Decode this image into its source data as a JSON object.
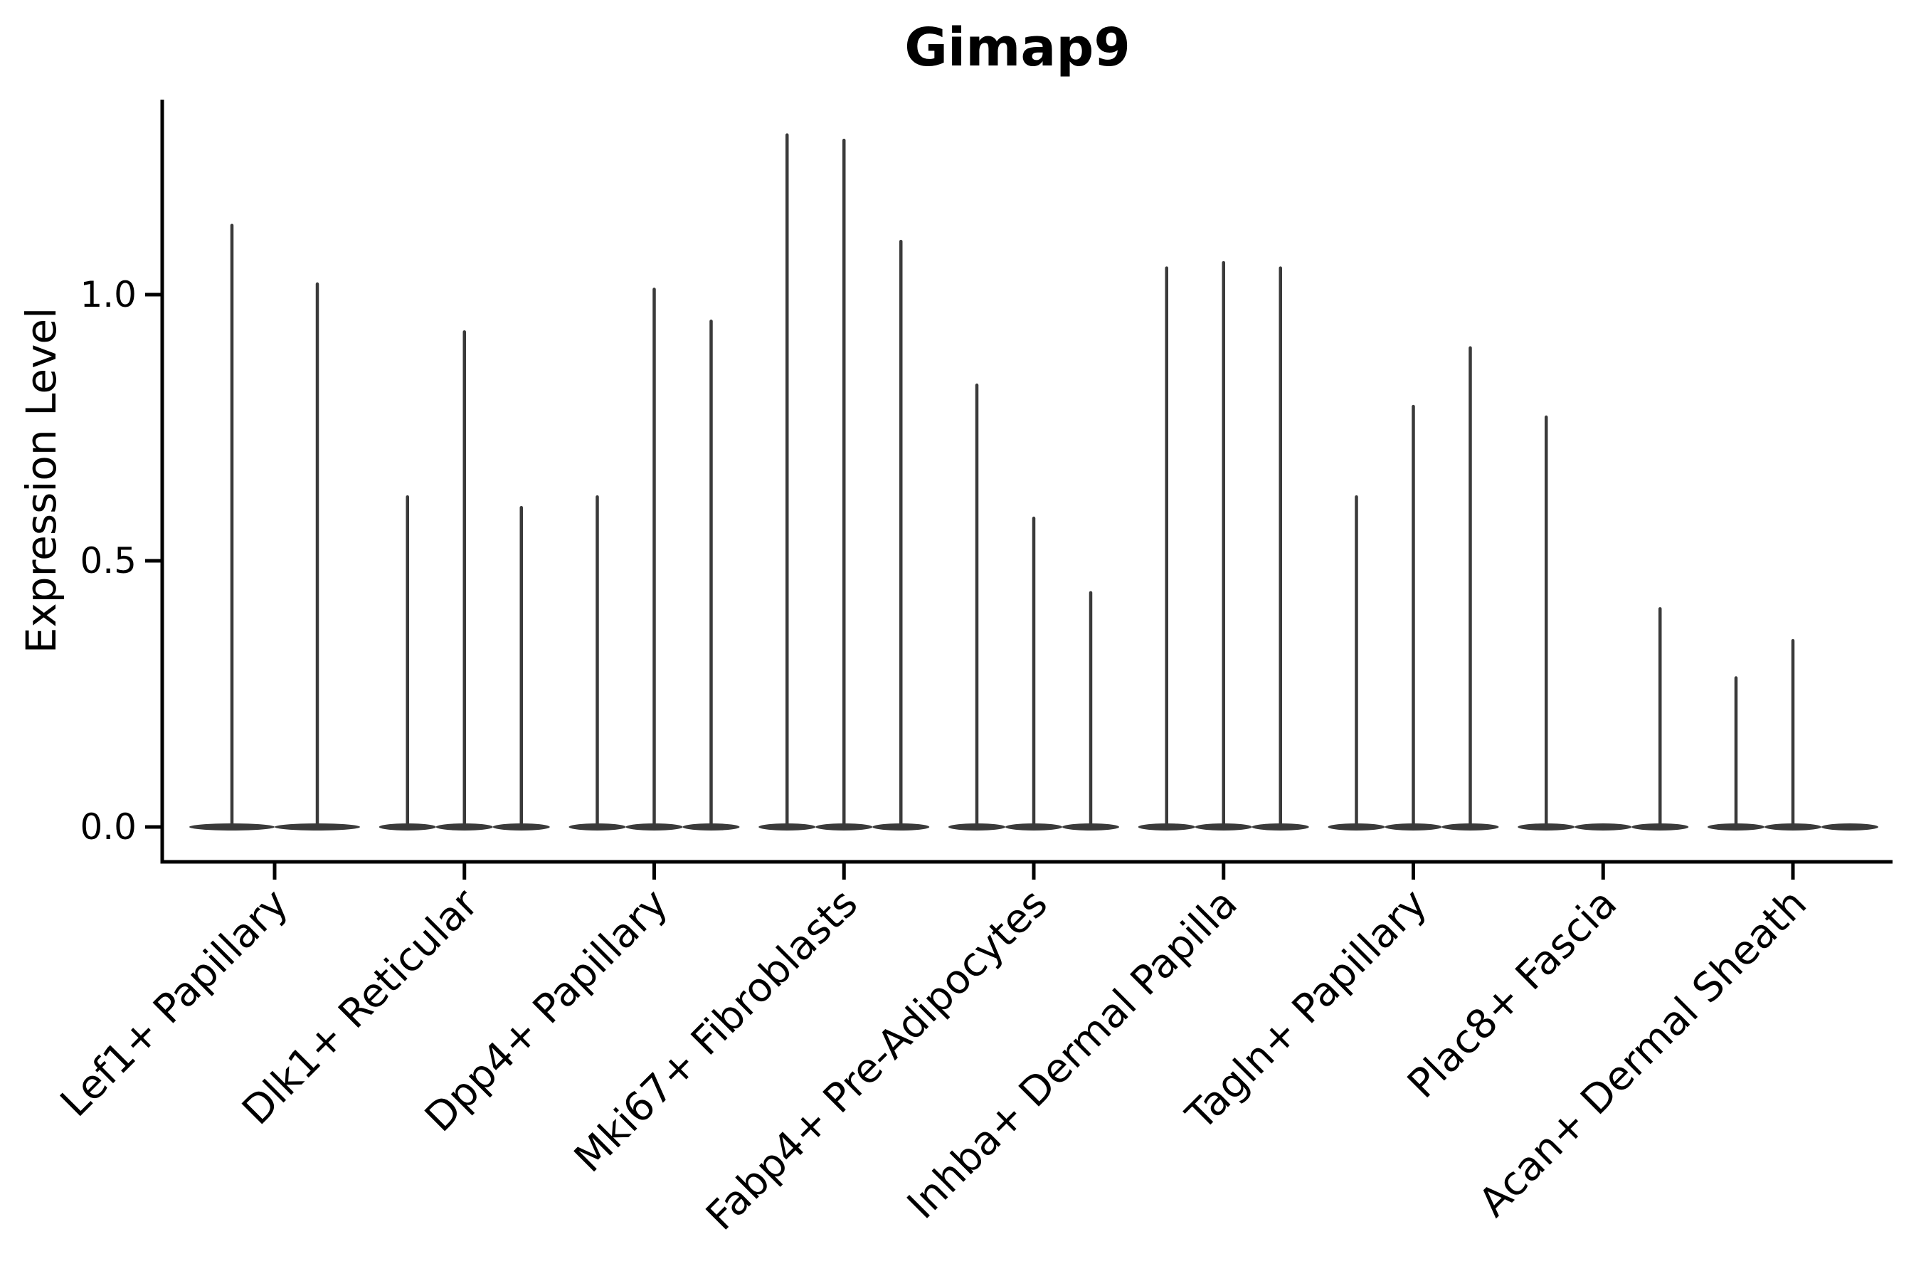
{
  "title": "Gimap9",
  "chart_data": {
    "type": "violin",
    "title": "Gimap9",
    "xlabel": "",
    "ylabel": "Expression Level",
    "yticks": [
      0.0,
      0.5,
      1.0
    ],
    "ylim": [
      -0.065,
      1.37
    ],
    "grid": false,
    "legend": "none",
    "violin_color": "#3a3a3a",
    "axis_color": "#000000",
    "background_color": "#ffffff",
    "note_values_are": "maximum expression reached by each thin violin spike; 0 means a flat violin (all data at zero, base only)",
    "groups": [
      {
        "category": "Lef1+ Papillary",
        "violins": [
          1.13,
          1.02
        ]
      },
      {
        "category": "Dlk1+ Reticular",
        "violins": [
          0.62,
          0.93,
          0.6
        ]
      },
      {
        "category": "Dpp4+ Papillary",
        "violins": [
          0.62,
          1.01,
          0.95
        ]
      },
      {
        "category": "Mki67+ Fibroblasts",
        "violins": [
          1.3,
          1.29,
          1.1
        ]
      },
      {
        "category": "Fabp4+ Pre-Adipocytes",
        "violins": [
          0.83,
          0.58,
          0.44
        ]
      },
      {
        "category": "Inhba+ Dermal Papilla",
        "violins": [
          1.05,
          1.06,
          1.05
        ]
      },
      {
        "category": "Tagln+ Papillary",
        "violins": [
          0.62,
          0.79,
          0.9
        ]
      },
      {
        "category": "Plac8+ Fascia",
        "violins": [
          0.77,
          0,
          0.41
        ]
      },
      {
        "category": "Acan+ Dermal Sheath",
        "violins": [
          0.28,
          0.35,
          0
        ]
      }
    ]
  }
}
